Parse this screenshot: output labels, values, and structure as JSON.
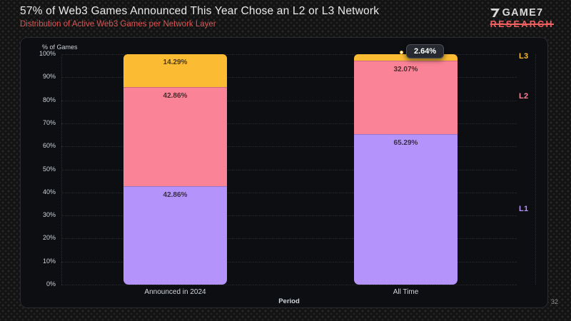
{
  "header": {
    "title": "57% of Web3 Games Announced This Year Chose an L2 or L3 Network",
    "subtitle": "Distribution of Active Web3 Games per Network Layer"
  },
  "logo": {
    "brand": "GAME7",
    "sub_brand": "RESEARCH"
  },
  "page_number": "32",
  "colors": {
    "accent_red": "#e05353",
    "l1_purple": "#b493fa",
    "l2_pink": "#fb8398",
    "l3_yellow": "#fbbc33",
    "panel_bg": "#0c0e12"
  },
  "chart_data": {
    "type": "bar",
    "stacked": true,
    "title": "Distribution of Active Web3 Games per Network Layer",
    "xlabel": "Period",
    "ylabel": "% of Games",
    "ylim": [
      0,
      100
    ],
    "ytick_step": 10,
    "ytick_suffix": "%",
    "grid": true,
    "legend_position": "right",
    "categories": [
      "Announced in 2024",
      "All Time"
    ],
    "series": [
      {
        "name": "L1",
        "color": "#b493fa",
        "values": [
          42.86,
          65.29
        ]
      },
      {
        "name": "L2",
        "color": "#fb8398",
        "values": [
          42.86,
          32.07
        ]
      },
      {
        "name": "L3",
        "color": "#fbbc33",
        "values": [
          14.29,
          2.64
        ]
      }
    ],
    "value_suffix": "%",
    "tooltip": {
      "category": "All Time",
      "series": "L3",
      "value": "2.64%"
    }
  }
}
